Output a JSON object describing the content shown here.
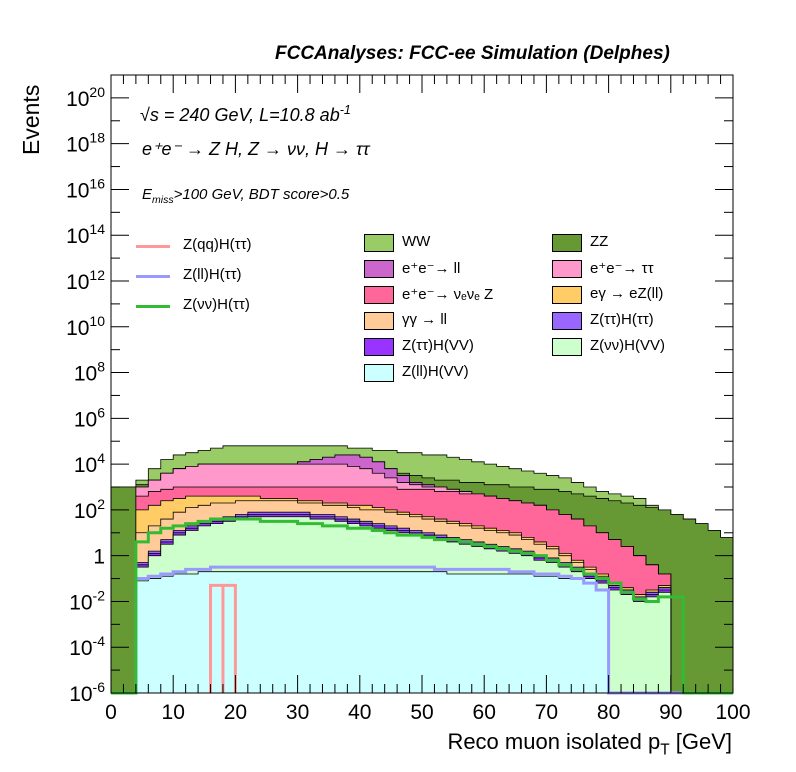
{
  "title": "FCCAnalyses: FCC-ee Simulation (Delphes)",
  "annotations": {
    "sqrt_s": "s = 240 GeV, L=10.8 ab",
    "lumi_exp": "-1",
    "process": "e⁺e⁻ → Z H, Z → νν, H → ττ",
    "tau_sub_l": "L",
    "selection": "E",
    "selection_sub": "miss",
    "selection_rest": ">100 GeV, BDT score>0.5"
  },
  "legend": {
    "lines": [
      {
        "label": "Z(qq)H(ττ)",
        "color": "#ff9999"
      },
      {
        "label": "Z(ll)H(ττ)",
        "color": "#9999ff"
      },
      {
        "label": "Z(νν)H(ττ)",
        "color": "#33bb33"
      }
    ],
    "fills": [
      {
        "label": "WW",
        "color": "#99cc66"
      },
      {
        "label": "ZZ",
        "color": "#669933"
      },
      {
        "label": "e⁺e⁻→ ll",
        "color": "#cc66cc"
      },
      {
        "label": "e⁺e⁻→ ττ",
        "color": "#ff99cc"
      },
      {
        "label": "e⁺e⁻→ νₑνₑ Z",
        "color": "#ff6699"
      },
      {
        "label": "eγ → eZ(ll)",
        "color": "#ffcc66"
      },
      {
        "label": "γγ → ll",
        "color": "#ffcc99"
      },
      {
        "label": "Z(ττ)H(ττ)",
        "color": "#9966ff"
      },
      {
        "label": "Z(ττ)H(VV)",
        "color": "#9933ff"
      },
      {
        "label": "Z(νν)H(VV)",
        "color": "#ccffcc"
      },
      {
        "label": "Z(ll)H(VV)",
        "color": "#ccffff"
      }
    ]
  },
  "chart_data": {
    "type": "area",
    "title": "FCCAnalyses: FCC-ee Simulation (Delphes)",
    "xlabel": "Reco muon isolated p_T [GeV]",
    "ylabel": "Events",
    "xlim": [
      0,
      100
    ],
    "ylim": [
      1e-06,
      1e+21
    ],
    "yscale": "log",
    "x_ticks": [
      "0",
      "10",
      "20",
      "30",
      "40",
      "50",
      "60",
      "70",
      "80",
      "90",
      "100"
    ],
    "y_ticks": [
      "10^-6",
      "10^-4",
      "10^-2",
      "1",
      "10^2",
      "10^4",
      "10^6",
      "10^8",
      "10^10",
      "10^12",
      "10^14",
      "10^16",
      "10^18",
      "10^20"
    ],
    "bin_width": 2,
    "stack_order": [
      "Z(ll)H(VV)",
      "Z(νν)H(VV)",
      "Z(ττ)H(VV)",
      "Z(ττ)H(ττ)",
      "γγ → ll",
      "eγ → eZ(ll)",
      "e⁺e⁻→ νₑνₑ Z",
      "e⁺e⁻→ ττ",
      "e⁺e⁻→ ll",
      "ZZ",
      "WW"
    ],
    "stack_log10_cumulative": {
      "Z(ll)H(VV)": [
        -7,
        -7,
        -1.1,
        -1.0,
        -0.9,
        -0.8,
        -0.8,
        -0.7,
        -0.7,
        -0.7,
        -0.7,
        -0.7,
        -0.7,
        -0.7,
        -0.7,
        -0.7,
        -0.7,
        -0.7,
        -0.7,
        -0.7,
        -0.7,
        -0.7,
        -0.7,
        -0.7,
        -0.7,
        -0.7,
        -0.7,
        -0.8,
        -0.8,
        -0.8,
        -0.8,
        -0.8,
        -0.8,
        -0.8,
        -0.9,
        -0.9,
        -1.0,
        -1.0,
        -1.0,
        -1.5,
        -7,
        -7,
        -7,
        -7,
        -7,
        -7,
        -7,
        -7,
        -7,
        -7
      ],
      "Z(νν)H(VV)": [
        -7,
        -7,
        -0.5,
        0.0,
        0.5,
        0.9,
        1.1,
        1.3,
        1.4,
        1.5,
        1.6,
        1.7,
        1.7,
        1.7,
        1.7,
        1.7,
        1.6,
        1.6,
        1.5,
        1.4,
        1.3,
        1.2,
        1.1,
        1.0,
        0.9,
        0.8,
        0.7,
        0.6,
        0.5,
        0.4,
        0.3,
        0.2,
        0.1,
        0.0,
        -0.2,
        -0.3,
        -0.5,
        -0.7,
        -1.0,
        -1.2,
        -1.5,
        -1.7,
        -2.0,
        -1.8,
        -1.6,
        -7,
        -7,
        -7,
        -7,
        -7
      ],
      "Z(ττ)H(VV)": [
        -7,
        -7,
        -0.4,
        0.1,
        0.6,
        1.0,
        1.2,
        1.4,
        1.5,
        1.6,
        1.7,
        1.8,
        1.8,
        1.8,
        1.8,
        1.8,
        1.7,
        1.7,
        1.6,
        1.5,
        1.4,
        1.3,
        1.2,
        1.1,
        1.0,
        0.9,
        0.8,
        0.7,
        0.6,
        0.5,
        0.4,
        0.3,
        0.2,
        0.1,
        -0.1,
        -0.2,
        -0.4,
        -0.6,
        -0.9,
        -1.1,
        -1.4,
        -1.6,
        -1.9,
        -1.7,
        -1.5,
        -7,
        -7,
        -7,
        -7,
        -7
      ],
      "Z(ττ)H(ττ)": [
        -7,
        -7,
        -0.3,
        0.2,
        0.7,
        1.1,
        1.3,
        1.5,
        1.6,
        1.7,
        1.8,
        1.9,
        1.9,
        1.9,
        1.9,
        1.9,
        1.8,
        1.8,
        1.7,
        1.6,
        1.5,
        1.4,
        1.3,
        1.2,
        1.1,
        1.0,
        0.9,
        0.8,
        0.7,
        0.6,
        0.5,
        0.4,
        0.3,
        0.2,
        0.0,
        -0.1,
        -0.3,
        -0.5,
        -0.8,
        -1.0,
        -1.3,
        -1.5,
        -1.8,
        -1.6,
        -1.4,
        -7,
        -7,
        -7,
        -7,
        -7
      ],
      "γγ → ll": [
        -7,
        -7,
        1.0,
        1.3,
        1.6,
        1.9,
        2.1,
        2.2,
        2.3,
        2.3,
        2.4,
        2.4,
        2.4,
        2.4,
        2.4,
        2.3,
        2.3,
        2.2,
        2.2,
        2.1,
        2.0,
        2.0,
        1.9,
        1.8,
        1.7,
        1.6,
        1.5,
        1.4,
        1.3,
        1.2,
        1.1,
        1.0,
        0.9,
        0.7,
        0.5,
        0.3,
        0.0,
        -0.3,
        -0.6,
        -0.9,
        -1.3,
        -1.5,
        -1.8,
        -1.6,
        -1.4,
        -7,
        -7,
        -7,
        -7,
        -7
      ],
      "eγ → eZ(ll)": [
        -7,
        -7,
        2.0,
        2.2,
        2.4,
        2.5,
        2.6,
        2.6,
        2.6,
        2.6,
        2.6,
        2.6,
        2.5,
        2.5,
        2.5,
        2.4,
        2.4,
        2.3,
        2.3,
        2.2,
        2.2,
        2.1,
        2.0,
        1.9,
        1.8,
        1.7,
        1.6,
        1.5,
        1.4,
        1.3,
        1.2,
        1.1,
        1.0,
        0.8,
        0.6,
        0.4,
        0.1,
        -0.2,
        -0.5,
        -0.8,
        -1.2,
        -1.4,
        -1.7,
        -1.5,
        -1.3,
        -7,
        -7,
        -7,
        -7,
        -7
      ],
      "e⁺e⁻→ νₑνₑ Z": [
        -7,
        -7,
        2.6,
        2.8,
        2.9,
        3.0,
        3.0,
        3.0,
        3.0,
        3.0,
        3.0,
        3.0,
        3.0,
        3.0,
        3.0,
        3.0,
        3.0,
        3.0,
        3.0,
        3.0,
        3.0,
        3.0,
        3.0,
        2.9,
        2.9,
        2.9,
        2.8,
        2.8,
        2.7,
        2.7,
        2.6,
        2.5,
        2.4,
        2.3,
        2.2,
        2.0,
        1.8,
        1.6,
        1.3,
        1.0,
        0.7,
        0.4,
        0.0,
        -0.4,
        -0.8,
        -7,
        -7,
        -7,
        -7,
        -7
      ],
      "e⁺e⁻→ ττ": [
        -7,
        -7,
        3.0,
        3.3,
        3.6,
        3.8,
        3.9,
        4.0,
        4.0,
        4.0,
        4.0,
        4.0,
        4.0,
        4.0,
        4.0,
        4.0,
        4.0,
        4.0,
        4.0,
        3.9,
        3.8,
        3.6,
        3.4,
        3.2,
        3.1,
        3.0,
        3.0,
        2.9,
        2.8,
        2.7,
        2.6,
        2.5,
        2.4,
        2.3,
        2.2,
        2.0,
        1.8,
        1.6,
        1.3,
        1.0,
        0.7,
        0.4,
        0.0,
        -0.4,
        -0.8,
        -7,
        -7,
        -7,
        -7,
        -7
      ],
      "e⁺e⁻→ ll": [
        -7,
        -7,
        3.0,
        3.3,
        3.6,
        3.8,
        3.9,
        4.0,
        4.0,
        4.0,
        4.0,
        4.0,
        4.0,
        4.0,
        4.0,
        4.1,
        4.2,
        4.3,
        4.4,
        4.4,
        4.3,
        4.1,
        3.8,
        3.5,
        3.2,
        3.1,
        3.0,
        2.9,
        2.8,
        2.7,
        2.6,
        2.5,
        2.4,
        2.3,
        2.2,
        2.0,
        1.8,
        1.6,
        1.3,
        1.0,
        0.7,
        0.4,
        0.0,
        -0.4,
        -0.8,
        -7,
        -7,
        -7,
        -7,
        -7
      ],
      "ZZ": [
        3.0,
        3.0,
        3.1,
        3.3,
        3.6,
        3.8,
        3.9,
        4.0,
        4.0,
        4.0,
        4.0,
        4.0,
        4.0,
        4.0,
        4.0,
        4.1,
        4.2,
        4.3,
        4.4,
        4.4,
        4.3,
        4.1,
        3.8,
        3.6,
        3.5,
        3.4,
        3.3,
        3.3,
        3.2,
        3.2,
        3.1,
        3.1,
        3.0,
        3.0,
        2.9,
        2.9,
        2.8,
        2.7,
        2.6,
        2.5,
        2.4,
        2.3,
        2.2,
        2.1,
        2.0,
        1.8,
        1.6,
        1.4,
        1.1,
        0.8
      ],
      "WW": [
        3.0,
        3.0,
        3.3,
        3.8,
        4.2,
        4.4,
        4.5,
        4.6,
        4.7,
        4.8,
        4.8,
        4.8,
        4.8,
        4.8,
        4.8,
        4.8,
        4.8,
        4.8,
        4.8,
        4.7,
        4.7,
        4.6,
        4.6,
        4.5,
        4.5,
        4.4,
        4.4,
        4.3,
        4.2,
        4.1,
        4.0,
        3.9,
        3.8,
        3.7,
        3.6,
        3.5,
        3.4,
        3.2,
        3.0,
        2.8,
        2.7,
        2.6,
        2.5,
        2.2,
        2.0,
        1.8,
        1.6,
        1.4,
        1.1,
        0.8
      ]
    },
    "signal_lines_log10": {
      "Z(qq)H(ττ)": {
        "x_bins": [
          16,
          18
        ],
        "values": [
          -1.3,
          -1.3
        ]
      },
      "Z(ll)H(ττ)": [
        -7,
        -7,
        -1.0,
        -0.9,
        -0.8,
        -0.7,
        -0.6,
        -0.6,
        -0.5,
        -0.5,
        -0.5,
        -0.5,
        -0.5,
        -0.5,
        -0.5,
        -0.5,
        -0.5,
        -0.5,
        -0.5,
        -0.5,
        -0.5,
        -0.5,
        -0.5,
        -0.5,
        -0.5,
        -0.5,
        -0.6,
        -0.6,
        -0.6,
        -0.6,
        -0.6,
        -0.6,
        -0.7,
        -0.7,
        -0.8,
        -0.8,
        -0.9,
        -1.0,
        -1.2,
        -1.5,
        -7,
        -7,
        -7,
        -7,
        -7,
        -7,
        -7,
        -7,
        -7,
        -7
      ],
      "Z(νν)H(ττ)": [
        -7,
        -7,
        0.6,
        1.0,
        1.2,
        1.3,
        1.4,
        1.5,
        1.6,
        1.6,
        1.6,
        1.6,
        1.5,
        1.5,
        1.5,
        1.4,
        1.4,
        1.3,
        1.3,
        1.2,
        1.2,
        1.1,
        1.0,
        0.9,
        0.9,
        0.8,
        0.7,
        0.7,
        0.6,
        0.5,
        0.4,
        0.3,
        0.2,
        0.1,
        0.0,
        -0.2,
        -0.4,
        -0.6,
        -0.8,
        -1.0,
        -1.2,
        -1.6,
        -1.9,
        -2.0,
        -1.8,
        -1.8,
        -7,
        -7,
        -7,
        -7
      ]
    }
  }
}
